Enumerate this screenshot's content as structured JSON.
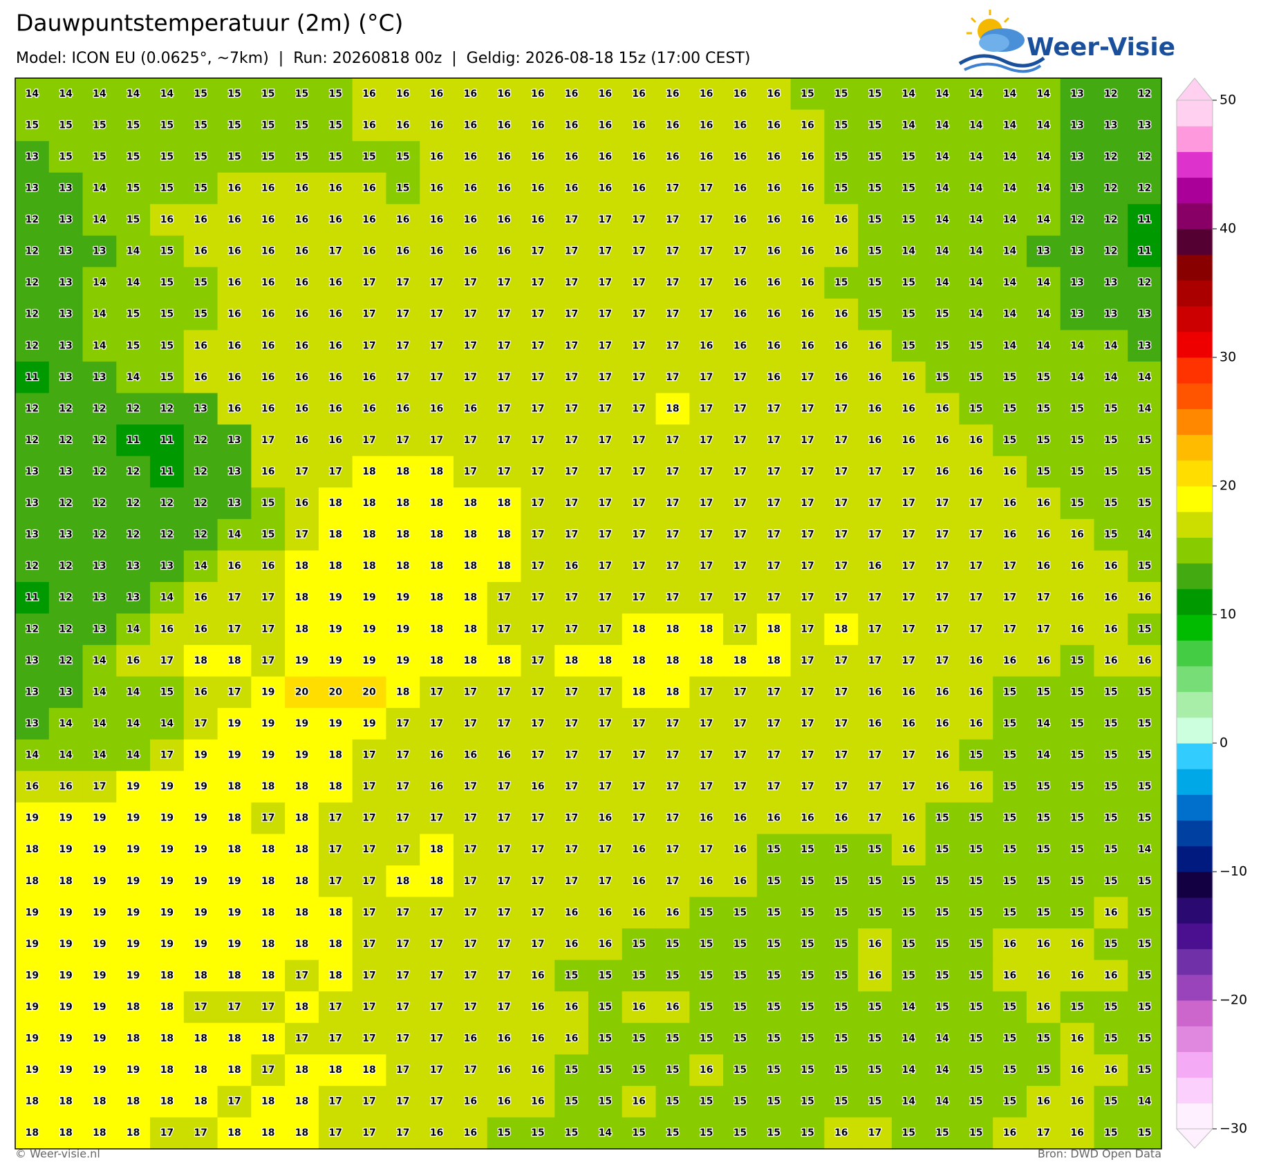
{
  "header": {
    "title": "Dauwpuntstemperatuur (2m) (°C)",
    "subtitle": "Model: ICON EU (0.0625°, ~7km)  |  Run: 20260818 00z  |  Geldig: 2026-08-18 15z (17:00 CEST)",
    "logo": "Weer-Visie"
  },
  "chart_data": {
    "type": "heatmap",
    "values": [
      [
        14,
        14,
        14,
        14,
        14,
        15,
        15,
        15,
        15,
        15,
        16,
        16,
        16,
        16,
        16,
        16,
        16,
        16,
        16,
        16,
        16,
        16,
        16,
        15,
        15,
        15,
        14,
        14,
        14,
        14,
        14,
        13,
        12,
        12
      ],
      [
        15,
        15,
        15,
        15,
        15,
        15,
        15,
        15,
        15,
        15,
        16,
        16,
        16,
        16,
        16,
        16,
        16,
        16,
        16,
        16,
        16,
        16,
        16,
        16,
        15,
        15,
        14,
        14,
        14,
        14,
        14,
        13,
        13,
        13
      ],
      [
        13,
        15,
        15,
        15,
        15,
        15,
        15,
        15,
        15,
        15,
        15,
        15,
        16,
        16,
        16,
        16,
        16,
        16,
        16,
        16,
        16,
        16,
        16,
        16,
        15,
        15,
        15,
        14,
        14,
        14,
        14,
        13,
        12,
        12
      ],
      [
        13,
        13,
        14,
        15,
        15,
        15,
        16,
        16,
        16,
        16,
        16,
        15,
        16,
        16,
        16,
        16,
        16,
        16,
        16,
        17,
        17,
        16,
        16,
        16,
        15,
        15,
        15,
        14,
        14,
        14,
        14,
        13,
        12,
        12
      ],
      [
        12,
        13,
        14,
        15,
        16,
        16,
        16,
        16,
        16,
        16,
        16,
        16,
        16,
        16,
        16,
        16,
        17,
        17,
        17,
        17,
        17,
        16,
        16,
        16,
        16,
        15,
        15,
        14,
        14,
        14,
        14,
        12,
        12,
        11
      ],
      [
        12,
        13,
        13,
        14,
        15,
        16,
        16,
        16,
        16,
        17,
        16,
        16,
        16,
        16,
        16,
        17,
        17,
        17,
        17,
        17,
        17,
        17,
        16,
        16,
        16,
        15,
        14,
        14,
        14,
        14,
        13,
        13,
        12,
        11
      ],
      [
        12,
        13,
        14,
        14,
        15,
        15,
        16,
        16,
        16,
        16,
        17,
        17,
        17,
        17,
        17,
        17,
        17,
        17,
        17,
        17,
        17,
        16,
        16,
        16,
        15,
        15,
        15,
        14,
        14,
        14,
        14,
        13,
        13,
        12
      ],
      [
        12,
        13,
        14,
        15,
        15,
        15,
        16,
        16,
        16,
        16,
        17,
        17,
        17,
        17,
        17,
        17,
        17,
        17,
        17,
        17,
        17,
        16,
        16,
        16,
        16,
        15,
        15,
        15,
        14,
        14,
        14,
        13,
        13,
        13
      ],
      [
        12,
        13,
        14,
        15,
        15,
        16,
        16,
        16,
        16,
        16,
        17,
        17,
        17,
        17,
        17,
        17,
        17,
        17,
        17,
        17,
        16,
        16,
        16,
        16,
        16,
        16,
        15,
        15,
        15,
        14,
        14,
        14,
        14,
        13
      ],
      [
        11,
        13,
        13,
        14,
        15,
        16,
        16,
        16,
        16,
        16,
        16,
        17,
        17,
        17,
        17,
        17,
        17,
        17,
        17,
        17,
        17,
        17,
        16,
        17,
        16,
        16,
        16,
        15,
        15,
        15,
        15,
        14,
        14,
        14
      ],
      [
        12,
        12,
        12,
        12,
        12,
        13,
        16,
        16,
        16,
        16,
        16,
        16,
        16,
        16,
        17,
        17,
        17,
        17,
        17,
        18,
        17,
        17,
        17,
        17,
        17,
        16,
        16,
        16,
        15,
        15,
        15,
        15,
        15,
        14
      ],
      [
        12,
        12,
        12,
        11,
        11,
        12,
        13,
        17,
        16,
        16,
        17,
        17,
        17,
        17,
        17,
        17,
        17,
        17,
        17,
        17,
        17,
        17,
        17,
        17,
        17,
        16,
        16,
        16,
        16,
        15,
        15,
        15,
        15,
        15
      ],
      [
        13,
        13,
        12,
        12,
        11,
        12,
        13,
        16,
        17,
        17,
        18,
        18,
        18,
        17,
        17,
        17,
        17,
        17,
        17,
        17,
        17,
        17,
        17,
        17,
        17,
        17,
        17,
        16,
        16,
        16,
        15,
        15,
        15,
        15
      ],
      [
        13,
        12,
        12,
        12,
        12,
        12,
        13,
        15,
        16,
        18,
        18,
        18,
        18,
        18,
        18,
        17,
        17,
        17,
        17,
        17,
        17,
        17,
        17,
        17,
        17,
        17,
        17,
        17,
        17,
        16,
        16,
        15,
        15,
        15
      ],
      [
        13,
        13,
        12,
        12,
        12,
        12,
        14,
        15,
        17,
        18,
        18,
        18,
        18,
        18,
        18,
        17,
        17,
        17,
        17,
        17,
        17,
        17,
        17,
        17,
        17,
        17,
        17,
        17,
        17,
        16,
        16,
        16,
        15,
        14
      ],
      [
        12,
        12,
        13,
        13,
        13,
        14,
        16,
        16,
        18,
        18,
        18,
        18,
        18,
        18,
        18,
        17,
        16,
        17,
        17,
        17,
        17,
        17,
        17,
        17,
        17,
        16,
        17,
        17,
        17,
        17,
        16,
        16,
        16,
        15
      ],
      [
        11,
        12,
        13,
        13,
        14,
        16,
        17,
        17,
        18,
        19,
        19,
        19,
        18,
        18,
        17,
        17,
        17,
        17,
        17,
        17,
        17,
        17,
        17,
        17,
        17,
        17,
        17,
        17,
        17,
        17,
        17,
        16,
        16,
        16
      ],
      [
        12,
        12,
        13,
        14,
        16,
        16,
        17,
        17,
        18,
        19,
        19,
        19,
        18,
        18,
        17,
        17,
        17,
        17,
        18,
        18,
        18,
        17,
        18,
        17,
        18,
        17,
        17,
        17,
        17,
        17,
        17,
        16,
        16,
        15
      ],
      [
        13,
        12,
        14,
        16,
        17,
        18,
        18,
        17,
        19,
        19,
        19,
        19,
        18,
        18,
        18,
        17,
        18,
        18,
        18,
        18,
        18,
        18,
        18,
        17,
        17,
        17,
        17,
        17,
        16,
        16,
        16,
        15,
        16,
        16
      ],
      [
        13,
        13,
        14,
        14,
        15,
        16,
        17,
        19,
        20,
        20,
        20,
        18,
        17,
        17,
        17,
        17,
        17,
        17,
        18,
        18,
        17,
        17,
        17,
        17,
        17,
        16,
        16,
        16,
        16,
        15,
        15,
        15,
        15,
        15
      ],
      [
        13,
        14,
        14,
        14,
        14,
        17,
        19,
        19,
        19,
        19,
        19,
        17,
        17,
        17,
        17,
        17,
        17,
        17,
        17,
        17,
        17,
        17,
        17,
        17,
        17,
        16,
        16,
        16,
        16,
        15,
        14,
        15,
        15,
        15
      ],
      [
        14,
        14,
        14,
        14,
        17,
        19,
        19,
        19,
        19,
        18,
        17,
        17,
        16,
        16,
        16,
        17,
        17,
        17,
        17,
        17,
        17,
        17,
        17,
        17,
        17,
        17,
        17,
        16,
        15,
        15,
        14,
        15,
        15,
        15
      ],
      [
        16,
        16,
        17,
        19,
        19,
        19,
        18,
        18,
        18,
        18,
        17,
        17,
        16,
        17,
        17,
        16,
        17,
        17,
        17,
        17,
        17,
        17,
        17,
        17,
        17,
        17,
        17,
        16,
        16,
        15,
        15,
        15,
        15,
        15
      ],
      [
        19,
        19,
        19,
        19,
        19,
        19,
        18,
        17,
        18,
        17,
        17,
        17,
        17,
        17,
        17,
        17,
        17,
        16,
        17,
        17,
        16,
        16,
        16,
        16,
        16,
        17,
        16,
        15,
        15,
        15,
        15,
        15,
        15,
        15
      ],
      [
        18,
        19,
        19,
        19,
        19,
        19,
        18,
        18,
        18,
        17,
        17,
        17,
        18,
        17,
        17,
        17,
        17,
        17,
        16,
        17,
        17,
        16,
        15,
        15,
        15,
        15,
        16,
        15,
        15,
        15,
        15,
        15,
        15,
        14
      ],
      [
        18,
        18,
        19,
        19,
        19,
        19,
        19,
        18,
        18,
        17,
        17,
        18,
        18,
        17,
        17,
        17,
        17,
        17,
        16,
        17,
        16,
        16,
        15,
        15,
        15,
        15,
        15,
        15,
        15,
        15,
        15,
        15,
        15,
        15
      ],
      [
        19,
        19,
        19,
        19,
        19,
        19,
        19,
        18,
        18,
        18,
        17,
        17,
        17,
        17,
        17,
        17,
        16,
        16,
        16,
        16,
        15,
        15,
        15,
        15,
        15,
        15,
        15,
        15,
        15,
        15,
        15,
        15,
        16,
        15
      ],
      [
        19,
        19,
        19,
        19,
        19,
        19,
        19,
        18,
        18,
        18,
        17,
        17,
        17,
        17,
        17,
        17,
        16,
        16,
        15,
        15,
        15,
        15,
        15,
        15,
        15,
        16,
        15,
        15,
        15,
        16,
        16,
        16,
        15,
        15
      ],
      [
        19,
        19,
        19,
        19,
        18,
        18,
        18,
        18,
        17,
        18,
        17,
        17,
        17,
        17,
        17,
        16,
        15,
        15,
        15,
        15,
        15,
        15,
        15,
        15,
        15,
        16,
        15,
        15,
        15,
        16,
        16,
        16,
        16,
        15
      ],
      [
        19,
        19,
        19,
        18,
        18,
        17,
        17,
        17,
        18,
        17,
        17,
        17,
        17,
        17,
        17,
        16,
        16,
        15,
        16,
        16,
        15,
        15,
        15,
        15,
        15,
        15,
        14,
        15,
        15,
        15,
        16,
        15,
        15,
        15
      ],
      [
        19,
        19,
        19,
        18,
        18,
        18,
        18,
        18,
        17,
        17,
        17,
        17,
        17,
        16,
        16,
        16,
        16,
        15,
        15,
        15,
        15,
        15,
        15,
        15,
        15,
        15,
        14,
        14,
        15,
        15,
        15,
        16,
        15,
        15
      ],
      [
        19,
        19,
        19,
        19,
        18,
        18,
        18,
        17,
        18,
        18,
        18,
        17,
        17,
        17,
        16,
        16,
        15,
        15,
        15,
        15,
        16,
        15,
        15,
        15,
        15,
        15,
        14,
        14,
        15,
        15,
        15,
        16,
        16,
        15
      ],
      [
        18,
        18,
        18,
        18,
        18,
        18,
        17,
        18,
        18,
        17,
        17,
        17,
        17,
        16,
        16,
        16,
        15,
        15,
        16,
        15,
        15,
        15,
        15,
        15,
        15,
        15,
        14,
        14,
        15,
        15,
        16,
        16,
        15,
        14
      ],
      [
        18,
        18,
        18,
        18,
        17,
        17,
        18,
        18,
        18,
        17,
        17,
        17,
        16,
        16,
        15,
        15,
        15,
        14,
        15,
        15,
        15,
        15,
        15,
        15,
        16,
        17,
        15,
        15,
        15,
        16,
        17,
        16,
        15,
        15
      ]
    ],
    "colorbar": {
      "lim": [
        -30,
        50
      ],
      "ticks": [
        {
          "value": -30,
          "label": "−30"
        },
        {
          "value": -20,
          "label": "−20"
        },
        {
          "value": -10,
          "label": "−10"
        },
        0,
        10,
        20,
        30,
        40,
        50
      ],
      "colors": [
        "#fff0ff",
        "#fcd0fc",
        "#f4aaf4",
        "#e088e0",
        "#cc66cc",
        "#9944bb",
        "#7030a8",
        "#4a1090",
        "#2a0a70",
        "#120042",
        "#001a80",
        "#0040a0",
        "#0070cc",
        "#00a8e8",
        "#33ccff",
        "#ccffdd",
        "#a8eea8",
        "#77dd77",
        "#44cc44",
        "#00bb00",
        "#009900",
        "#44aa11",
        "#88cc00",
        "#ccdd00",
        "#ffff00",
        "#ffdd00",
        "#ffbb00",
        "#ff8800",
        "#ff5500",
        "#ff3300",
        "#ee0000",
        "#cc0000",
        "#aa0000",
        "#880000",
        "#550033",
        "#880066",
        "#aa0099",
        "#dd33cc",
        "#ff99dd",
        "#ffd0f0"
      ]
    }
  },
  "footer": {
    "left": "© Weer-visie.nl",
    "right": "Bron: DWD Open Data"
  }
}
